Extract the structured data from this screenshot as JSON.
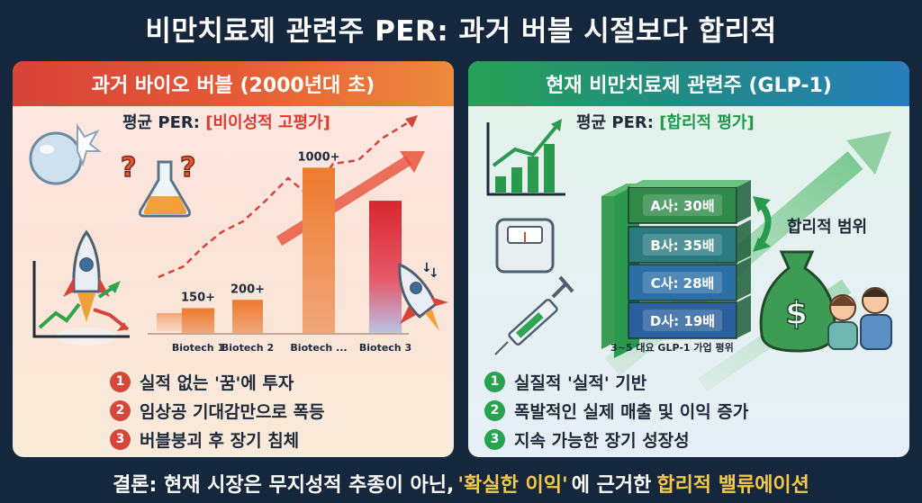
{
  "title": "비만치료제 관련주 PER: 과거 버블 시절보다 합리적",
  "left": {
    "header": "과거 바이오 버블 (2000년대 초)",
    "per_prefix": "평균 PER: ",
    "per_highlight": "[비이성적 고평가]",
    "points": [
      "실적 없는 '꿈'에 투자",
      "임상공 기대감만으로 폭등",
      "버블붕괴 후 장기 침체"
    ],
    "accent_color": "#d8433a"
  },
  "right": {
    "header": "현재 비만치료제 관련주 (GLP-1)",
    "per_prefix": "평균 PER: ",
    "per_highlight": "[합리적 평가]",
    "range_label": "합리적 범위",
    "stack_caption": "3~5 대요 GLP-1 가업 평위",
    "points": [
      "실질적 '실적' 기반",
      "폭발적인 실제 매출 및 이익 증가",
      "지속 가능한 장기 성장성"
    ],
    "accent_color": "#27a24e"
  },
  "chart_data": [
    {
      "type": "bar",
      "categories": [
        "Biotech 1",
        "Biotech 2",
        "Biotech ...",
        "Biotech 3"
      ],
      "values": [
        150,
        200,
        1000,
        800
      ],
      "labels": [
        "150+",
        "200+",
        "1000+",
        ""
      ],
      "colors": [
        "#e0682c",
        "#e5702c",
        "#ec7a2e",
        "#d83a36"
      ],
      "xlabel": "",
      "ylabel": "",
      "ylim": [
        0,
        1100
      ]
    },
    {
      "type": "bar",
      "categories": [
        "A사",
        "B사",
        "C사",
        "D사"
      ],
      "values": [
        30,
        35,
        28,
        19
      ],
      "labels": [
        "A사: 30배",
        "B사: 35배",
        "C사: 28배",
        "D사: 19배"
      ],
      "colors": [
        "#2f8a4a",
        "#2a7a7f",
        "#2a6fa6",
        "#2a5f9e"
      ]
    }
  ],
  "conclusion": {
    "prefix": "결론: 현재 시장은 무지성적 추종이 아닌, ",
    "quote": "'확실한 이익'",
    "middle": "에 근거한 ",
    "highlight": "합리적 밸류에이션"
  }
}
